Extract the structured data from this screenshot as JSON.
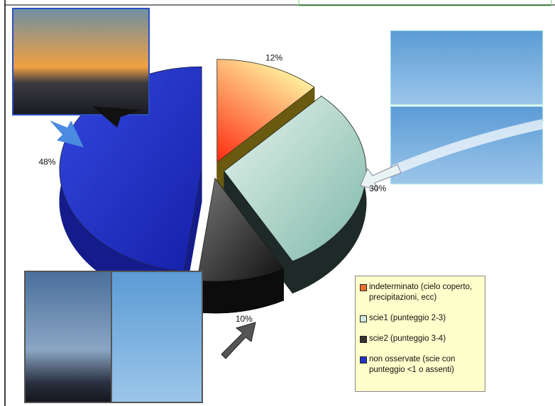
{
  "chart_data": {
    "type": "pie",
    "categories": [
      "indeterminato (cielo coperto, precipitazioni, ecc)",
      "scie1 (punteggio 2-3)",
      "scie2 (punteggio 3-4)",
      "non osservate (scie con punteggio <1 o assenti)"
    ],
    "values": [
      12,
      30,
      10,
      48
    ],
    "value_labels": [
      "12%",
      "30%",
      "10%",
      "48%"
    ],
    "colors": [
      "#f07030",
      "#cfe8e0",
      "#333333",
      "#2233cc"
    ]
  }
}
